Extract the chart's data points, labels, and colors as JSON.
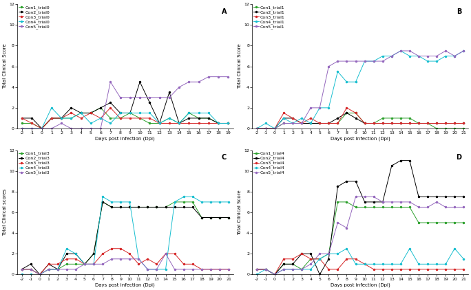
{
  "A": {
    "label": "A",
    "x": [
      -2,
      -1,
      0,
      1,
      2,
      3,
      4,
      5,
      6,
      7,
      8,
      9,
      10,
      11,
      12,
      13,
      14,
      15,
      16,
      17,
      18,
      19
    ],
    "series": {
      "Con1_trial0": {
        "color": "#2ca02c",
        "data": [
          0.5,
          0.5,
          0,
          1,
          1,
          1,
          1.5,
          1.5,
          2,
          1,
          1,
          1.5,
          1,
          0.5,
          0.5,
          1,
          0.5,
          1.5,
          1,
          1,
          0.5,
          0.5
        ]
      },
      "Con2_trial0": {
        "color": "#000000",
        "data": [
          1,
          1,
          0,
          1,
          1,
          2,
          1.5,
          1.5,
          2,
          2.5,
          1.5,
          1.5,
          4.5,
          2.5,
          0.5,
          3.5,
          0.5,
          1,
          1,
          1,
          0.5,
          0.5
        ]
      },
      "Con3_trial0": {
        "color": "#d62728",
        "data": [
          1,
          0.5,
          0,
          1,
          1,
          1.5,
          1,
          1.5,
          1,
          2,
          1,
          1,
          1,
          1,
          0.5,
          0.5,
          0.5,
          0.5,
          0.5,
          0.5,
          0.5,
          0.5
        ]
      },
      "Con4_trial0": {
        "color": "#17becf",
        "data": [
          0,
          0,
          0,
          2,
          1,
          1,
          1.5,
          0.5,
          1,
          0.5,
          1.5,
          1.5,
          1.5,
          1.5,
          0.5,
          1,
          0.5,
          1.5,
          1.5,
          1.5,
          0.5,
          0.5
        ]
      },
      "Con5_trial0": {
        "color": "#9467bd",
        "data": [
          0,
          0,
          0,
          0,
          0.5,
          0,
          0,
          0,
          0,
          4.5,
          3,
          3,
          3,
          3,
          3,
          3,
          4,
          4.5,
          4.5,
          5,
          5,
          5
        ]
      }
    },
    "ylim": [
      0,
      12
    ],
    "yticks": [
      0,
      2,
      4,
      6,
      8,
      10,
      12
    ],
    "ylabel": "Total Clinical Score",
    "xlabel": "Days post infection (Dpi)"
  },
  "B": {
    "label": "B",
    "x": [
      -2,
      -1,
      0,
      1,
      2,
      3,
      4,
      5,
      6,
      7,
      8,
      9,
      10,
      11,
      12,
      13,
      14,
      15,
      16,
      17,
      18,
      19,
      20,
      21
    ],
    "series": {
      "Con1_trial1": {
        "color": "#2ca02c",
        "data": [
          0,
          0,
          0,
          0.5,
          0.5,
          0.5,
          0.5,
          0.5,
          0.5,
          0.5,
          1.5,
          1.5,
          0.5,
          0.5,
          1,
          1,
          1,
          1,
          0.5,
          0.5,
          0,
          0,
          0,
          0
        ]
      },
      "Con2_trial1": {
        "color": "#000000",
        "data": [
          0,
          0,
          0,
          1,
          1,
          0.5,
          0.5,
          0.5,
          0.5,
          1,
          1.5,
          1,
          0.5,
          0.5,
          0.5,
          0.5,
          0.5,
          0.5,
          0.5,
          0.5,
          0.5,
          0.5,
          0.5,
          0.5
        ]
      },
      "Con3_trial1": {
        "color": "#d62728",
        "data": [
          0,
          0,
          0,
          1.5,
          1,
          0.5,
          1,
          0.5,
          0.5,
          0.5,
          2,
          1.5,
          0.5,
          0.5,
          0.5,
          0.5,
          0.5,
          0.5,
          0.5,
          0.5,
          0.5,
          0.5,
          0.5,
          0.5
        ]
      },
      "Con4_trial1": {
        "color": "#17becf",
        "data": [
          0,
          0.5,
          0,
          1,
          0.5,
          1,
          0.5,
          2,
          2,
          5.5,
          4.5,
          4.5,
          6.5,
          6.5,
          7,
          7,
          7.5,
          7,
          7,
          6.5,
          6.5,
          7,
          7,
          7.5
        ]
      },
      "Con5_trial1": {
        "color": "#9467bd",
        "data": [
          0,
          0,
          0,
          0.5,
          0.5,
          0.5,
          2,
          2,
          6,
          6.5,
          6.5,
          6.5,
          6.5,
          6.5,
          6.5,
          7,
          7.5,
          7.5,
          7,
          7,
          7,
          7.5,
          7,
          7.5
        ]
      }
    },
    "ylim": [
      0,
      12
    ],
    "yticks": [
      0,
      2,
      4,
      6,
      8,
      10,
      12
    ],
    "ylabel": "Total Clinical Score",
    "xlabel": "Days post Infection (Dpi)"
  },
  "C": {
    "label": "C",
    "x": [
      -2,
      -1,
      0,
      1,
      2,
      3,
      4,
      5,
      6,
      7,
      8,
      9,
      10,
      11,
      12,
      13,
      14,
      15,
      16,
      17,
      18,
      19,
      20,
      21
    ],
    "series": {
      "Con1_trial3": {
        "color": "#2ca02c",
        "data": [
          0.5,
          0.5,
          0,
          0.5,
          0.5,
          1,
          1,
          1,
          2,
          7,
          6.5,
          6.5,
          6.5,
          6.5,
          6.5,
          6.5,
          6.5,
          7,
          7,
          7,
          5.5,
          5.5,
          5.5,
          5.5
        ]
      },
      "Con2_trial3": {
        "color": "#000000",
        "data": [
          0.5,
          1,
          0,
          1,
          0.5,
          2,
          2,
          1,
          2,
          7,
          6.5,
          6.5,
          6.5,
          6.5,
          6.5,
          6.5,
          6.5,
          6.5,
          6.5,
          6.5,
          5.5,
          5.5,
          5.5,
          5.5
        ]
      },
      "Con3_trial3": {
        "color": "#d62728",
        "data": [
          0.5,
          0.5,
          0,
          1,
          1,
          1.5,
          1.5,
          1,
          1,
          2,
          2.5,
          2.5,
          2,
          1,
          1.5,
          1,
          2,
          2,
          1,
          1,
          0.5,
          0.5,
          0.5,
          0.5
        ]
      },
      "Con4_trial3": {
        "color": "#17becf",
        "data": [
          0,
          0,
          0,
          0.5,
          0.5,
          2.5,
          2,
          1,
          1,
          7.5,
          7,
          7,
          7,
          1.5,
          0.5,
          0.5,
          0.5,
          7,
          7.5,
          7.5,
          7,
          7,
          7,
          7
        ]
      },
      "Con5_trial3": {
        "color": "#9467bd",
        "data": [
          0.5,
          0.5,
          0,
          0.5,
          0.5,
          0.5,
          0.5,
          1,
          1,
          1,
          1.5,
          1.5,
          1.5,
          1.5,
          0.5,
          0.5,
          2,
          0.5,
          0.5,
          0.5,
          0.5,
          0.5,
          0.5,
          0.5
        ]
      }
    },
    "ylim": [
      0,
      12
    ],
    "yticks": [
      0,
      2,
      4,
      6,
      8,
      10,
      12
    ],
    "ylabel": "Total Clinical scores",
    "xlabel": "Days post infection (Dpi)"
  },
  "D": {
    "label": "D",
    "x": [
      -2,
      -1,
      0,
      1,
      2,
      3,
      4,
      5,
      6,
      7,
      8,
      9,
      10,
      11,
      12,
      13,
      14,
      15,
      16,
      17,
      18,
      19,
      20,
      21
    ],
    "series": {
      "Con1_trial4": {
        "color": "#2ca02c",
        "data": [
          0.5,
          0.5,
          0,
          1,
          1,
          0.5,
          1.5,
          1.5,
          2,
          7,
          7,
          6.5,
          6.5,
          6.5,
          6.5,
          6.5,
          6.5,
          6.5,
          5,
          5,
          5,
          5,
          5,
          5
        ]
      },
      "Con2_trial4": {
        "color": "#000000",
        "data": [
          0.5,
          0.5,
          0,
          1,
          1,
          2,
          2,
          0,
          1.5,
          8.5,
          9,
          9,
          7,
          7,
          7,
          10.5,
          11,
          11,
          7.5,
          7.5,
          7.5,
          7.5,
          7.5,
          7.5
        ]
      },
      "Con3_trial4": {
        "color": "#d62728",
        "data": [
          0.5,
          0.5,
          0,
          1.5,
          1.5,
          2,
          1.5,
          1.5,
          0.5,
          0.5,
          1.5,
          1.5,
          1,
          0.5,
          0.5,
          0.5,
          0.5,
          0.5,
          0.5,
          0.5,
          0.5,
          0.5,
          0.5,
          0.5
        ]
      },
      "Con4_trial4": {
        "color": "#17becf",
        "data": [
          0,
          0.5,
          0,
          0.5,
          0.5,
          0.5,
          0.5,
          1.5,
          2,
          2,
          2.5,
          1,
          1,
          1,
          1,
          1,
          1,
          2.5,
          1,
          1,
          1,
          1,
          2.5,
          1.5
        ]
      },
      "Con5_trial4": {
        "color": "#9467bd",
        "data": [
          0.5,
          0.5,
          0,
          0.5,
          0.5,
          0.5,
          1,
          2,
          2,
          5,
          4.5,
          7.5,
          7.5,
          7.5,
          7,
          7,
          7,
          7,
          6.5,
          6.5,
          7,
          6.5,
          6.5,
          6.5
        ]
      }
    },
    "ylim": [
      0,
      12
    ],
    "yticks": [
      0,
      2,
      4,
      6,
      8,
      10,
      12
    ],
    "ylabel": "Total Clinical Score",
    "xlabel": "Days post infection (Dpi)"
  },
  "marker": "o",
  "markersize": 1.5,
  "linewidth": 0.7,
  "legend_fontsize": 4.5,
  "axis_fontsize": 5,
  "tick_fontsize": 4.5,
  "label_fontsize": 7,
  "figsize": [
    6.84,
    4.22
  ]
}
